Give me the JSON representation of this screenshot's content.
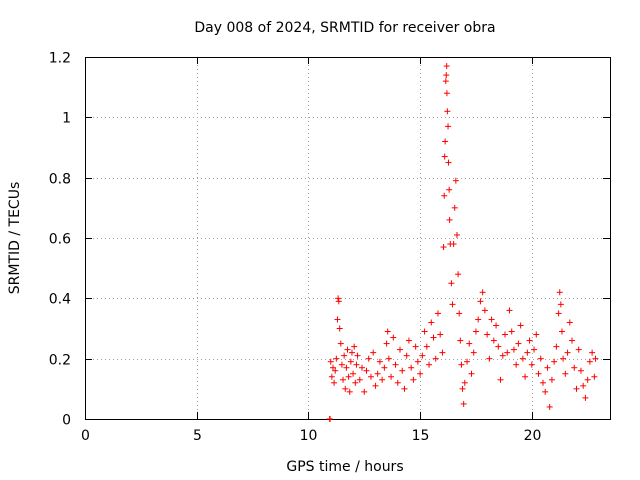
{
  "chart_data": {
    "type": "scatter",
    "title": "Day 008 of 2024, SRMTID for receiver obra",
    "xlabel": "GPS time / hours",
    "ylabel": "SRMTID / TECUs",
    "xlim": [
      0,
      23.5
    ],
    "ylim": [
      0,
      1.2
    ],
    "x_ticks": [
      0,
      5,
      10,
      15,
      20
    ],
    "x_tick_labels": [
      "0",
      "5",
      "10",
      "15",
      "20"
    ],
    "y_ticks": [
      0,
      0.2,
      0.4,
      0.6,
      0.8,
      1.0,
      1.2
    ],
    "y_tick_labels": [
      "0",
      "0.2",
      "0.4",
      "0.6",
      "0.8",
      "1",
      "1.2"
    ],
    "grid": true,
    "marker": "plus",
    "series": [
      {
        "name": "SRMTID",
        "color": "#ff0000",
        "points": [
          [
            10.95,
            0.0
          ],
          [
            10.97,
            0.0
          ],
          [
            11.0,
            0.19
          ],
          [
            11.05,
            0.14
          ],
          [
            11.1,
            0.17
          ],
          [
            11.15,
            0.12
          ],
          [
            11.2,
            0.16
          ],
          [
            11.25,
            0.2
          ],
          [
            11.3,
            0.33
          ],
          [
            11.33,
            0.4
          ],
          [
            11.36,
            0.39
          ],
          [
            11.4,
            0.3
          ],
          [
            11.45,
            0.25
          ],
          [
            11.5,
            0.18
          ],
          [
            11.55,
            0.13
          ],
          [
            11.6,
            0.21
          ],
          [
            11.65,
            0.1
          ],
          [
            11.7,
            0.17
          ],
          [
            11.75,
            0.23
          ],
          [
            11.8,
            0.14
          ],
          [
            11.85,
            0.09
          ],
          [
            11.9,
            0.19
          ],
          [
            11.95,
            0.22
          ],
          [
            12.0,
            0.15
          ],
          [
            12.05,
            0.24
          ],
          [
            12.1,
            0.12
          ],
          [
            12.15,
            0.18
          ],
          [
            12.2,
            0.21
          ],
          [
            12.3,
            0.13
          ],
          [
            12.4,
            0.17
          ],
          [
            12.5,
            0.09
          ],
          [
            12.6,
            0.16
          ],
          [
            12.7,
            0.2
          ],
          [
            12.8,
            0.14
          ],
          [
            12.9,
            0.22
          ],
          [
            13.0,
            0.11
          ],
          [
            13.1,
            0.15
          ],
          [
            13.2,
            0.19
          ],
          [
            13.3,
            0.13
          ],
          [
            13.4,
            0.17
          ],
          [
            13.5,
            0.25
          ],
          [
            13.55,
            0.29
          ],
          [
            13.6,
            0.2
          ],
          [
            13.7,
            0.14
          ],
          [
            13.8,
            0.27
          ],
          [
            13.9,
            0.18
          ],
          [
            14.0,
            0.12
          ],
          [
            14.1,
            0.23
          ],
          [
            14.2,
            0.16
          ],
          [
            14.3,
            0.1
          ],
          [
            14.4,
            0.21
          ],
          [
            14.5,
            0.26
          ],
          [
            14.6,
            0.17
          ],
          [
            14.7,
            0.13
          ],
          [
            14.8,
            0.24
          ],
          [
            14.9,
            0.19
          ],
          [
            15.0,
            0.15
          ],
          [
            15.1,
            0.21
          ],
          [
            15.2,
            0.29
          ],
          [
            15.3,
            0.24
          ],
          [
            15.4,
            0.18
          ],
          [
            15.5,
            0.32
          ],
          [
            15.6,
            0.27
          ],
          [
            15.7,
            0.2
          ],
          [
            15.8,
            0.35
          ],
          [
            15.9,
            0.28
          ],
          [
            16.0,
            0.22
          ],
          [
            16.05,
            0.57
          ],
          [
            16.08,
            0.74
          ],
          [
            16.1,
            0.87
          ],
          [
            16.12,
            0.92
          ],
          [
            16.15,
            1.12
          ],
          [
            16.17,
            1.14
          ],
          [
            16.19,
            1.17
          ],
          [
            16.2,
            1.08
          ],
          [
            16.22,
            1.02
          ],
          [
            16.25,
            0.97
          ],
          [
            16.27,
            0.85
          ],
          [
            16.3,
            0.76
          ],
          [
            16.32,
            0.66
          ],
          [
            16.35,
            0.58
          ],
          [
            16.4,
            0.45
          ],
          [
            16.45,
            0.38
          ],
          [
            16.5,
            0.58
          ],
          [
            16.55,
            0.7
          ],
          [
            16.6,
            0.79
          ],
          [
            16.65,
            0.61
          ],
          [
            16.7,
            0.48
          ],
          [
            16.75,
            0.35
          ],
          [
            16.8,
            0.26
          ],
          [
            16.85,
            0.18
          ],
          [
            16.9,
            0.1
          ],
          [
            16.95,
            0.05
          ],
          [
            17.0,
            0.12
          ],
          [
            17.1,
            0.19
          ],
          [
            17.2,
            0.25
          ],
          [
            17.3,
            0.15
          ],
          [
            17.4,
            0.22
          ],
          [
            17.5,
            0.29
          ],
          [
            17.6,
            0.33
          ],
          [
            17.7,
            0.39
          ],
          [
            17.8,
            0.42
          ],
          [
            17.9,
            0.36
          ],
          [
            18.0,
            0.28
          ],
          [
            18.1,
            0.2
          ],
          [
            18.2,
            0.33
          ],
          [
            18.3,
            0.26
          ],
          [
            18.4,
            0.31
          ],
          [
            18.5,
            0.24
          ],
          [
            18.6,
            0.13
          ],
          [
            18.7,
            0.21
          ],
          [
            18.8,
            0.28
          ],
          [
            18.9,
            0.22
          ],
          [
            19.0,
            0.36
          ],
          [
            19.1,
            0.29
          ],
          [
            19.2,
            0.23
          ],
          [
            19.3,
            0.18
          ],
          [
            19.4,
            0.25
          ],
          [
            19.5,
            0.31
          ],
          [
            19.6,
            0.2
          ],
          [
            19.7,
            0.14
          ],
          [
            19.8,
            0.22
          ],
          [
            19.9,
            0.26
          ],
          [
            20.0,
            0.18
          ],
          [
            20.1,
            0.23
          ],
          [
            20.2,
            0.28
          ],
          [
            20.3,
            0.15
          ],
          [
            20.4,
            0.2
          ],
          [
            20.5,
            0.12
          ],
          [
            20.6,
            0.09
          ],
          [
            20.7,
            0.17
          ],
          [
            20.8,
            0.04
          ],
          [
            20.9,
            0.13
          ],
          [
            21.0,
            0.19
          ],
          [
            21.1,
            0.24
          ],
          [
            21.2,
            0.35
          ],
          [
            21.25,
            0.42
          ],
          [
            21.3,
            0.38
          ],
          [
            21.35,
            0.29
          ],
          [
            21.4,
            0.2
          ],
          [
            21.5,
            0.15
          ],
          [
            21.6,
            0.22
          ],
          [
            21.7,
            0.32
          ],
          [
            21.8,
            0.26
          ],
          [
            21.9,
            0.17
          ],
          [
            22.0,
            0.1
          ],
          [
            22.1,
            0.23
          ],
          [
            22.2,
            0.16
          ],
          [
            22.3,
            0.11
          ],
          [
            22.4,
            0.07
          ],
          [
            22.5,
            0.13
          ],
          [
            22.6,
            0.19
          ],
          [
            22.7,
            0.22
          ],
          [
            22.8,
            0.14
          ],
          [
            22.85,
            0.2
          ]
        ]
      }
    ]
  }
}
